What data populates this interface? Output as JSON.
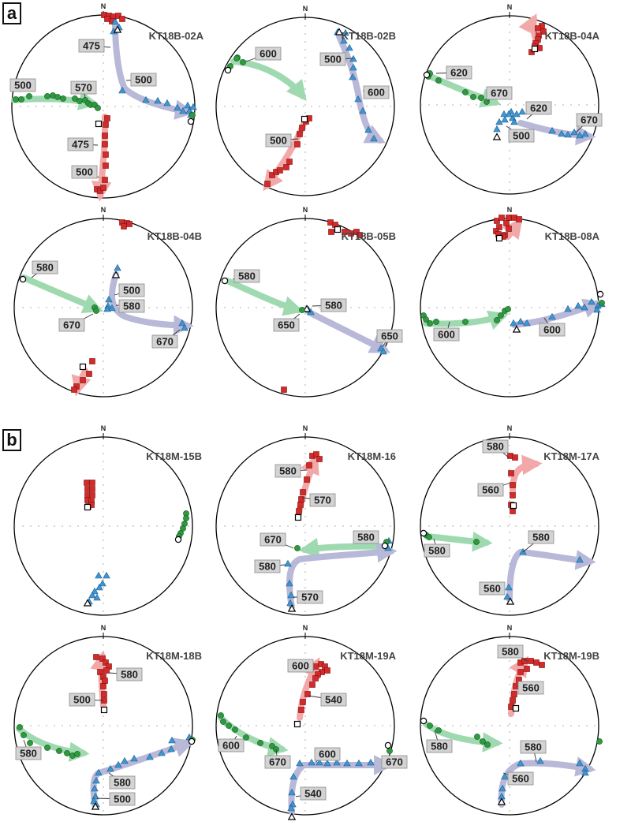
{
  "colors": {
    "red_series": "#d42a2a",
    "green_series": "#2e9a3f",
    "blue_series": "#3f96d2",
    "red_trend": "#f2a8a8",
    "green_trend": "#9fd9b0",
    "blue_trend": "#b8b8d8",
    "label_box": "#d3d3d3",
    "net_circle": "#000000"
  },
  "north_label": "N",
  "panels": [
    {
      "letter": "a",
      "nets": [
        {
          "title": "KT18B-02A",
          "labels": [
            "475",
            "500",
            "500",
            "570",
            "475",
            "500"
          ]
        },
        {
          "title": "KT18B-02B",
          "labels": [
            "600",
            "500",
            "600",
            "500"
          ]
        },
        {
          "title": "KT18B-04A",
          "labels": [
            "620",
            "670",
            "620",
            "500",
            "670"
          ]
        },
        {
          "title": "KT18B-04B",
          "labels": [
            "580",
            "500",
            "580",
            "670",
            "670"
          ]
        },
        {
          "title": "KT18B-05B",
          "labels": [
            "580",
            "580",
            "650",
            "650"
          ]
        },
        {
          "title": "KT18B-08A",
          "labels": [
            "600",
            "600"
          ]
        }
      ]
    },
    {
      "letter": "b",
      "nets": [
        {
          "title": "KT18M-15B",
          "labels": []
        },
        {
          "title": "KT18M-16",
          "labels": [
            "580",
            "570",
            "670",
            "580",
            "580",
            "570"
          ]
        },
        {
          "title": "KT18M-17A",
          "labels": [
            "580",
            "560",
            "580",
            "580",
            "560"
          ]
        },
        {
          "title": "KT18M-18B",
          "labels": [
            "580",
            "500",
            "580",
            "580",
            "500"
          ]
        },
        {
          "title": "KT18M-19A",
          "labels": [
            "600",
            "540",
            "600",
            "670",
            "600",
            "670",
            "540"
          ]
        },
        {
          "title": "KT18M-19B",
          "labels": [
            "580",
            "560",
            "580",
            "580",
            "560"
          ]
        }
      ]
    }
  ]
}
